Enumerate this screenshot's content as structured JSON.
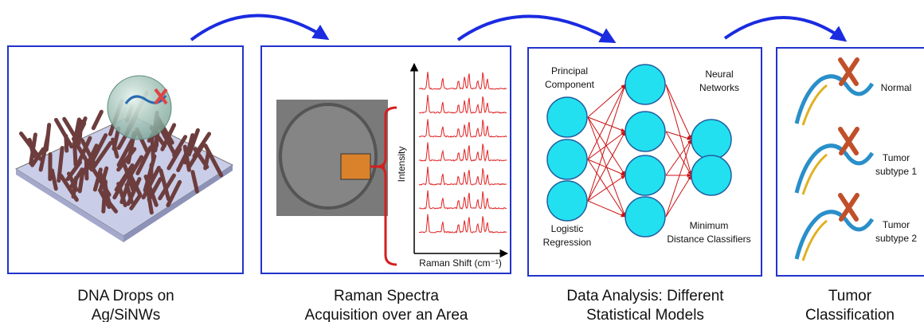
{
  "panels": [
    {
      "caption": [
        "DNA Drops on",
        "Ag/SiNWs"
      ]
    },
    {
      "caption": [
        "Raman Spectra",
        "Acquisition over an Area"
      ],
      "y_axis_label": "Intensity",
      "x_axis_label": "Raman Shift (cm⁻¹)"
    },
    {
      "caption": [
        "Data Analysis: Different",
        "Statistical Models"
      ],
      "labels": [
        [
          "Principal",
          "Component"
        ],
        [
          "Neural",
          "Networks"
        ],
        [
          "Logistic",
          "Regression"
        ],
        [
          "Minimum",
          "Distance Classifiers"
        ]
      ]
    },
    {
      "caption": [
        "Tumor",
        "Classification"
      ],
      "labels": [
        [
          "Normal"
        ],
        [
          "Tumor",
          "subtype 1"
        ],
        [
          "Tumor",
          "subtype 2"
        ]
      ]
    }
  ]
}
